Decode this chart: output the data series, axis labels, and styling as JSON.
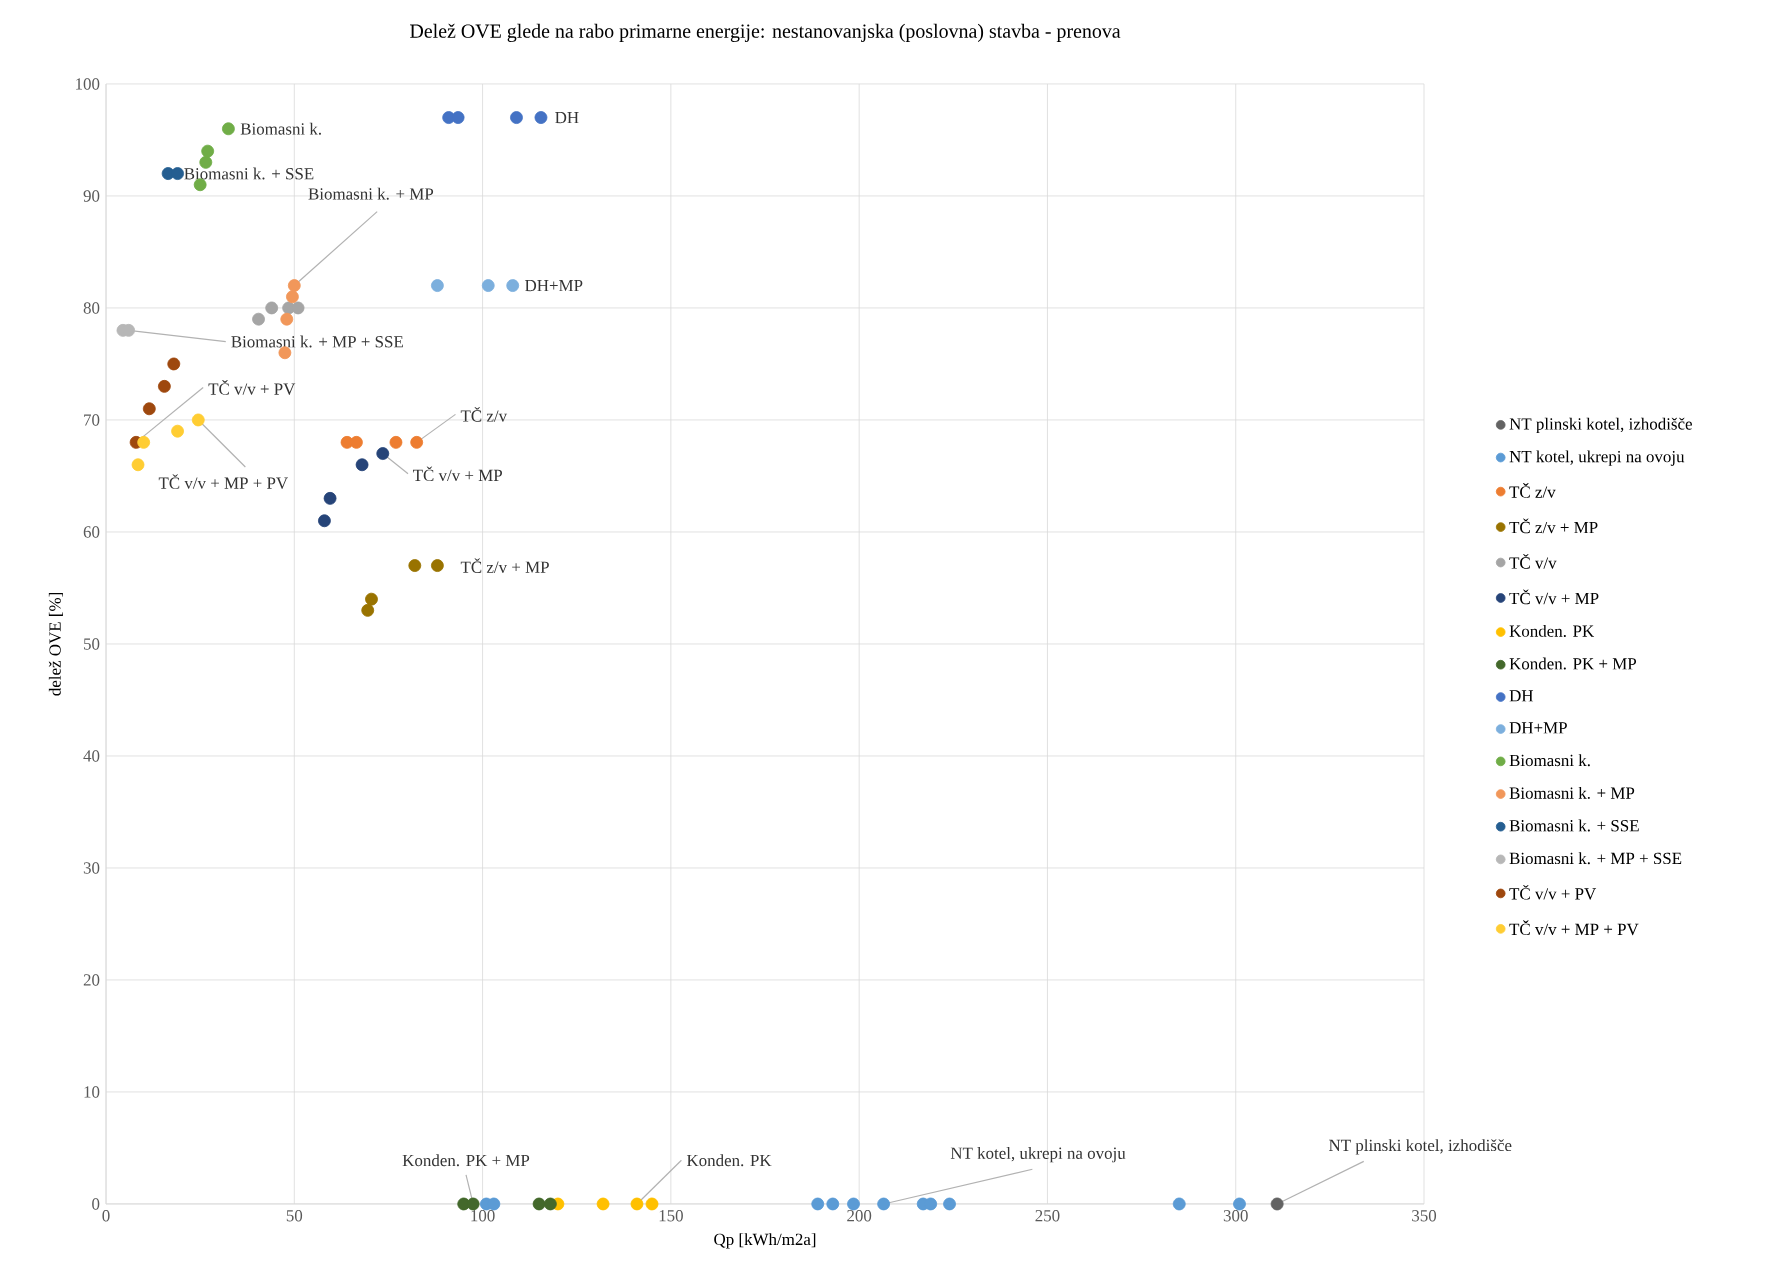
{
  "chart_data": {
    "type": "scatter",
    "title": "Delež  OVE  glede  na rabo primarne  energije:  nestanovanjska  (poslovna)  stavba  - prenova",
    "xlabel": "Qp [kWh/m2a]",
    "ylabel": "delež OVE [%]",
    "xlim": [
      0,
      350
    ],
    "ylim": [
      0,
      100
    ],
    "xticks": [
      0,
      50,
      100,
      150,
      200,
      250,
      300,
      350
    ],
    "yticks": [
      0,
      10,
      20,
      30,
      40,
      50,
      60,
      70,
      80,
      90,
      100
    ],
    "grid": true,
    "legend": "right",
    "marker": "circle",
    "series": [
      {
        "name": "NT plinski kotel, izhodišče",
        "color": "#636363",
        "x": [
          311
        ],
        "values": [
          0
        ]
      },
      {
        "name": "NT kotel, ukrepi na ovoju",
        "color": "#5b9bd5",
        "x": [
          101,
          103,
          189,
          193,
          198.5,
          206.5,
          217,
          219,
          224,
          285,
          301
        ],
        "values": [
          0,
          0,
          0,
          0,
          0,
          0,
          0,
          0,
          0,
          0,
          0
        ]
      },
      {
        "name": "TČ z/v",
        "color": "#ed7d31",
        "x": [
          64,
          66.5,
          77,
          82.5
        ],
        "values": [
          68,
          68,
          68,
          68
        ]
      },
      {
        "name": "TČ z/v + MP",
        "color": "#997300",
        "x": [
          69.5,
          70.5,
          82,
          88
        ],
        "values": [
          53,
          54,
          57,
          57
        ]
      },
      {
        "name": "TČ v/v",
        "color": "#a5a5a5",
        "x": [
          40.5,
          44,
          48.5,
          51
        ],
        "values": [
          79,
          80,
          80,
          80
        ]
      },
      {
        "name": "TČ v/v + MP",
        "color": "#264478",
        "x": [
          58,
          59.5,
          68,
          73.5
        ],
        "values": [
          61,
          63,
          66,
          67
        ]
      },
      {
        "name": "Konden. PK",
        "color": "#ffc000",
        "x": [
          120,
          132,
          141,
          145
        ],
        "values": [
          0,
          0,
          0,
          0
        ]
      },
      {
        "name": "Konden. PK + MP",
        "color": "#43682b",
        "x": [
          95,
          97.5,
          115,
          118
        ],
        "values": [
          0,
          0,
          0,
          0
        ]
      },
      {
        "name": "DH",
        "color": "#4472c4",
        "x": [
          91,
          93.5,
          109,
          115.5
        ],
        "values": [
          97,
          97,
          97,
          97
        ]
      },
      {
        "name": "DH+MP",
        "color": "#7cafdd",
        "x": [
          88,
          101.5,
          108
        ],
        "values": [
          82,
          82,
          82
        ]
      },
      {
        "name": "Biomasni k.",
        "color": "#70ad47",
        "x": [
          25,
          26.5,
          27,
          32.5
        ],
        "values": [
          91,
          93,
          94,
          96
        ]
      },
      {
        "name": "Biomasni k. + MP",
        "color": "#f1975a",
        "x": [
          47.5,
          48,
          49.5,
          50
        ],
        "values": [
          76,
          79,
          81,
          82
        ]
      },
      {
        "name": "Biomasni k. + SSE",
        "color": "#255e91",
        "x": [
          16.5,
          19
        ],
        "values": [
          92,
          92
        ]
      },
      {
        "name": "Biomasni k. + MP + SSE",
        "color": "#b7b7b7",
        "x": [
          4.5,
          6
        ],
        "values": [
          78,
          78
        ]
      },
      {
        "name": "TČ v/v + PV",
        "color": "#9e480e",
        "x": [
          8,
          11.5,
          15.5,
          18
        ],
        "values": [
          68,
          71,
          73,
          75
        ]
      },
      {
        "name": "TČ v/v + MP + PV",
        "color": "#ffcd33",
        "x": [
          8.5,
          10,
          19,
          24.5
        ],
        "values": [
          66,
          68,
          69,
          70
        ]
      }
    ],
    "annotations": [
      {
        "text": "Biomasni k.",
        "x": 32.5,
        "y": 96
      },
      {
        "text": "Biomasni k. + SSE",
        "x": 18.5,
        "y": 92
      },
      {
        "text": "Biomasni k. + MP",
        "x": 50,
        "y": 82
      },
      {
        "text": "Biomasni k. + MP + SSE",
        "x": 6,
        "y": 78
      },
      {
        "text": "DH",
        "x": 115.5,
        "y": 97
      },
      {
        "text": "DH+MP",
        "x": 108,
        "y": 82
      },
      {
        "text": "TČ v/v + PV",
        "x": 8,
        "y": 68
      },
      {
        "text": "TČ v/v + MP + PV",
        "x": 24.5,
        "y": 70
      },
      {
        "text": "TČ z/v",
        "x": 82.5,
        "y": 68
      },
      {
        "text": "TČ v/v + MP",
        "x": 73.5,
        "y": 67
      },
      {
        "text": "TČ z/v + MP",
        "x": 88,
        "y": 57
      },
      {
        "text": "Konden. PK + MP",
        "x": 97.5,
        "y": 0
      },
      {
        "text": "Konden. PK",
        "x": 141,
        "y": 0
      },
      {
        "text": "NT kotel, ukrepi na ovoju",
        "x": 206.5,
        "y": 0
      },
      {
        "text": "NT plinski kotel, izhodišče",
        "x": 311,
        "y": 0
      }
    ]
  }
}
